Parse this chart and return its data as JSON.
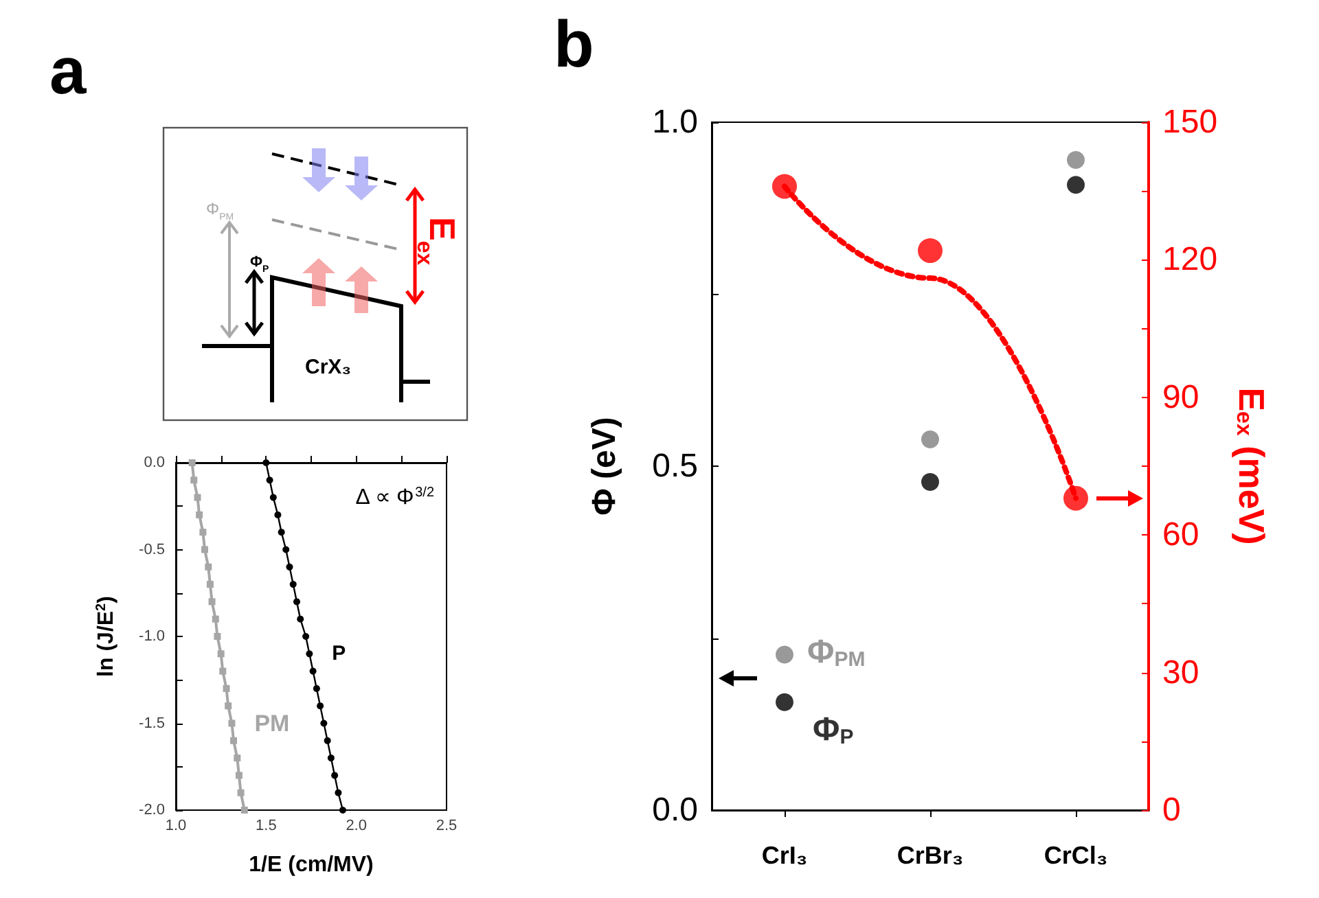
{
  "chart_data": [
    {
      "type": "other",
      "title": "a",
      "annotations": [
        "Φ$_{PM}$",
        "Φ$_{P}$",
        "E$_{ex}$",
        "CrX₃"
      ]
    },
    {
      "type": "line",
      "xlabel": "1/E (cm/MV)",
      "ylabel": "ln (J/E$^{2}$)",
      "annotations": [
        "Δ ∝ Φ$^{3/2}$"
      ],
      "xlim": [
        1,
        2.5
      ],
      "xticks": [
        {
          "value": 1,
          "label": "1.0"
        },
        {
          "value": 1.25,
          "label": null
        },
        {
          "value": 1.5,
          "label": "1.5"
        },
        {
          "value": 1.75,
          "label": null
        },
        {
          "value": 2,
          "label": "2.0"
        },
        {
          "value": 2.25,
          "label": null
        },
        {
          "value": 2.5,
          "label": "2.5"
        }
      ],
      "ylim": [
        -2,
        0
      ],
      "yticks": [
        {
          "value": -2,
          "label": "-2.0"
        },
        {
          "value": -1.75,
          "label": null
        },
        {
          "value": -1.5,
          "label": "-1.5"
        },
        {
          "value": -1.25,
          "label": null
        },
        {
          "value": -1,
          "label": "-1.0"
        },
        {
          "value": -0.75,
          "label": null
        },
        {
          "value": -0.5,
          "label": "-0.5"
        },
        {
          "value": -0.25,
          "label": null
        },
        {
          "value": 0,
          "label": "0.0"
        }
      ],
      "grid": false,
      "legend": false,
      "series": [
        {
          "name": "PM",
          "color": "#a6a6a6",
          "marker": "square",
          "x": [
            1.09,
            1.1,
            1.12,
            1.13,
            1.15,
            1.16,
            1.18,
            1.19,
            1.2,
            1.22,
            1.23,
            1.25,
            1.26,
            1.28,
            1.29,
            1.31,
            1.32,
            1.34,
            1.35,
            1.36,
            1.38
          ],
          "values": [
            0,
            -0.1,
            -0.2,
            -0.3,
            -0.4,
            -0.5,
            -0.6,
            -0.7,
            -0.8,
            -0.9,
            -1.0,
            -1.1,
            -1.2,
            -1.3,
            -1.4,
            -1.5,
            -1.6,
            -1.7,
            -1.8,
            -1.9,
            -2.0
          ]
        },
        {
          "name": "P",
          "color": "#000000",
          "marker": "circle",
          "x": [
            1.5,
            1.52,
            1.54,
            1.565,
            1.585,
            1.61,
            1.63,
            1.65,
            1.67,
            1.69,
            1.72,
            1.74,
            1.76,
            1.78,
            1.8,
            1.82,
            1.84,
            1.86,
            1.88,
            1.9,
            1.925
          ],
          "values": [
            0,
            -0.1,
            -0.2,
            -0.3,
            -0.4,
            -0.5,
            -0.6,
            -0.7,
            -0.8,
            -0.9,
            -1.0,
            -1.1,
            -1.2,
            -1.3,
            -1.4,
            -1.5,
            -1.6,
            -1.7,
            -1.8,
            -1.9,
            -2.0
          ]
        }
      ]
    },
    {
      "type": "scatter",
      "title": "b",
      "categories": [
        "CrI₃",
        "CrBr₃",
        "CrCl₃"
      ],
      "ylabel": "Φ (eV)",
      "y2label": "E$_{ex}$ (meV)",
      "ylim": [
        0,
        1
      ],
      "yticks": [
        {
          "value": 0,
          "label": "0.0"
        },
        {
          "value": 0.25,
          "label": null
        },
        {
          "value": 0.5,
          "label": "0.5"
        },
        {
          "value": 0.75,
          "label": null
        },
        {
          "value": 1,
          "label": "1.0"
        }
      ],
      "y2lim": [
        0,
        150
      ],
      "y2ticks": [
        0,
        {
          "value": 15,
          "label": null
        },
        30,
        {
          "value": 45,
          "label": null
        },
        60,
        {
          "value": 75,
          "label": null
        },
        90,
        {
          "value": 105,
          "label": null
        },
        120,
        {
          "value": 135,
          "label": null
        },
        150
      ],
      "grid": false,
      "legend": false,
      "marker": "circle",
      "series": [
        {
          "name": "Φ$_{PM}$",
          "color": "#808080",
          "values": [
            0.226,
            0.539,
            0.945
          ]
        },
        {
          "name": "Φ$_{P}$",
          "color": "#000000",
          "values": [
            0.157,
            0.477,
            0.909
          ]
        },
        {
          "color": "#ff0000",
          "axis": "y2",
          "values": [
            136,
            122,
            68
          ]
        },
        {
          "type": "line",
          "color": "#ff0000",
          "axis": "y2",
          "line_style": "dotted",
          "marker": "none",
          "values": [
            136,
            116,
            68
          ]
        }
      ]
    }
  ]
}
